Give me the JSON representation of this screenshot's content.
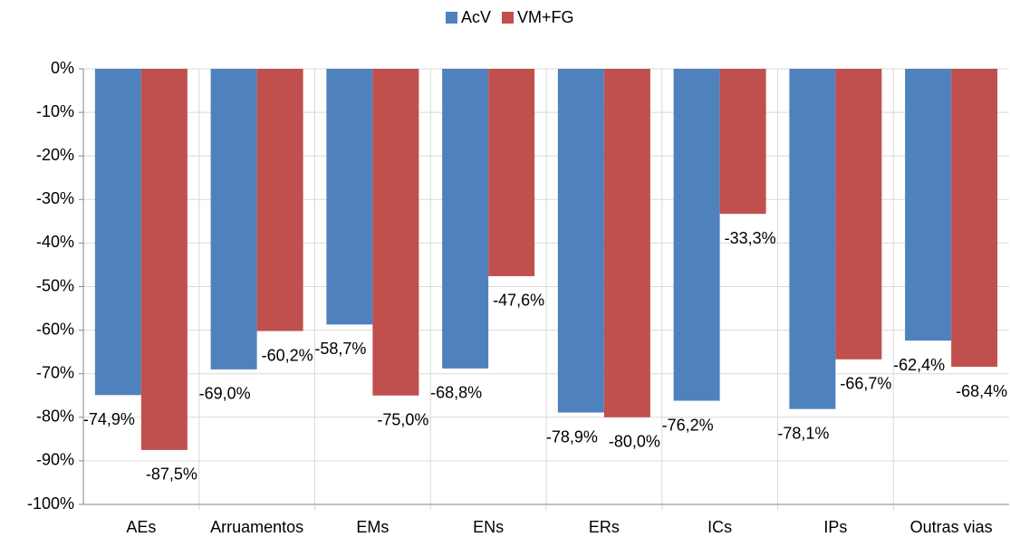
{
  "chart_data": {
    "type": "bar",
    "categories": [
      "AEs",
      "Arruamentos",
      "EMs",
      "ENs",
      "ERs",
      "ICs",
      "IPs",
      "Outras vias"
    ],
    "series": [
      {
        "name": "AcV",
        "color": "#4f81bd",
        "values": [
          -74.9,
          -69.0,
          -58.7,
          -68.8,
          -78.9,
          -76.2,
          -78.1,
          -62.4
        ],
        "value_labels": [
          "-74,9%",
          "-69,0%",
          "-58,7%",
          "-68,8%",
          "-78,9%",
          "-76,2%",
          "-78,1%",
          "-62,4%"
        ]
      },
      {
        "name": "VM+FG",
        "color": "#c0504d",
        "values": [
          -87.5,
          -60.2,
          -75.0,
          -47.6,
          -80.0,
          -33.3,
          -66.7,
          -68.4
        ],
        "value_labels": [
          "-87,5%",
          "-60,2%",
          "-75,0%",
          "-47,6%",
          "-80,0%",
          "-33,3%",
          "-66,7%",
          "-68,4%"
        ]
      }
    ],
    "ylim": [
      -100,
      0
    ],
    "yticks": [
      {
        "value": 0,
        "label": "0%"
      },
      {
        "value": -10,
        "label": "-10%"
      },
      {
        "value": -20,
        "label": "-20%"
      },
      {
        "value": -30,
        "label": "-30%"
      },
      {
        "value": -40,
        "label": "-40%"
      },
      {
        "value": -50,
        "label": "-50%"
      },
      {
        "value": -60,
        "label": "-60%"
      },
      {
        "value": -70,
        "label": "-70%"
      },
      {
        "value": -80,
        "label": "-80%"
      },
      {
        "value": -90,
        "label": "-90%"
      },
      {
        "value": -100,
        "label": "-100%"
      }
    ],
    "grid": true,
    "legend": "top"
  }
}
